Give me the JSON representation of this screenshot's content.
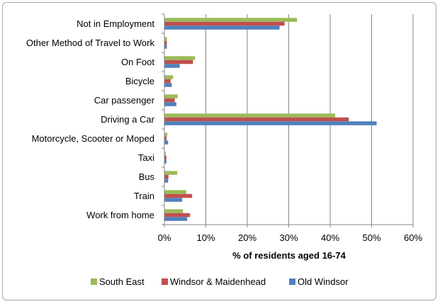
{
  "chart_data": {
    "type": "bar",
    "orientation": "horizontal",
    "title": "",
    "xlabel": "% of residents aged 16-74",
    "ylabel": "",
    "xlim": [
      0,
      60
    ],
    "x_ticks": [
      "0%",
      "10%",
      "20%",
      "30%",
      "40%",
      "50%",
      "60%"
    ],
    "grid": true,
    "legend_position": "bottom",
    "categories": [
      "Not in Employment",
      "Other Method of Travel to Work",
      "On Foot",
      "Bicycle",
      "Car passenger",
      "Driving a Car",
      "Motorcycle, Scooter or Moped",
      "Taxi",
      "Bus",
      "Train",
      "Work from home"
    ],
    "series": [
      {
        "name": "South East",
        "color": "#9bbb59",
        "values": [
          32,
          0.6,
          7.4,
          2.1,
          3.2,
          41.2,
          0.7,
          0.3,
          3.1,
          5.3,
          4.5
        ]
      },
      {
        "name": "Windsor & Maidenhead",
        "color": "#c0504d",
        "values": [
          29,
          0.6,
          6.9,
          1.5,
          2.5,
          44.5,
          0.5,
          0.5,
          1.0,
          6.7,
          6.2
        ]
      },
      {
        "name": "Old Windsor",
        "color": "#4f81bd",
        "values": [
          27.8,
          0.6,
          3.7,
          1.8,
          2.9,
          51.2,
          0.9,
          0.5,
          0.9,
          4.3,
          5.5
        ]
      }
    ]
  }
}
